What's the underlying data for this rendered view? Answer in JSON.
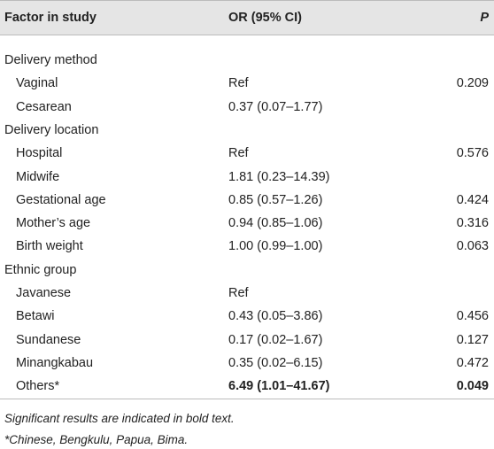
{
  "table": {
    "header": {
      "factor": "Factor in study",
      "or": "OR (95% CI)",
      "p": "P"
    },
    "groups": [
      {
        "label": "Delivery method",
        "items": [
          {
            "factor": "Vaginal",
            "or": "Ref",
            "p": 0.209
          },
          {
            "factor": "Cesarean",
            "or": "0.37 (0.07–1.77)"
          }
        ]
      },
      {
        "label": "Delivery location",
        "items": [
          {
            "factor": "Hospital",
            "or": "Ref",
            "p": 0.576
          },
          {
            "factor": "Midwife",
            "or": "1.81 (0.23–14.39)"
          },
          {
            "factor": "Gestational age",
            "or": "0.85 (0.57–1.26)",
            "p": 0.424
          },
          {
            "factor": "Mother’s age",
            "or": "0.94 (0.85–1.06)",
            "p": 0.316
          },
          {
            "factor": "Birth weight",
            "or": "1.00 (0.99–1.00)",
            "p": 0.063
          }
        ]
      },
      {
        "label": "Ethnic group",
        "items": [
          {
            "factor": "Javanese",
            "or": "Ref"
          },
          {
            "factor": "Betawi",
            "or": "0.43 (0.05–3.86)",
            "p": 0.456
          },
          {
            "factor": "Sundanese",
            "or": "0.17 (0.02–1.67)",
            "p": 0.127
          },
          {
            "factor": "Minangkabau",
            "or": "0.35 (0.02–6.15)",
            "p": 0.472
          },
          {
            "factor": "Others*",
            "or": "6.49 (1.01–41.67)",
            "p": 0.049,
            "bold": true
          }
        ]
      }
    ],
    "footnotes": [
      "Significant results are indicated in bold text.",
      "*Chinese, Bengkulu, Papua, Bima."
    ]
  }
}
